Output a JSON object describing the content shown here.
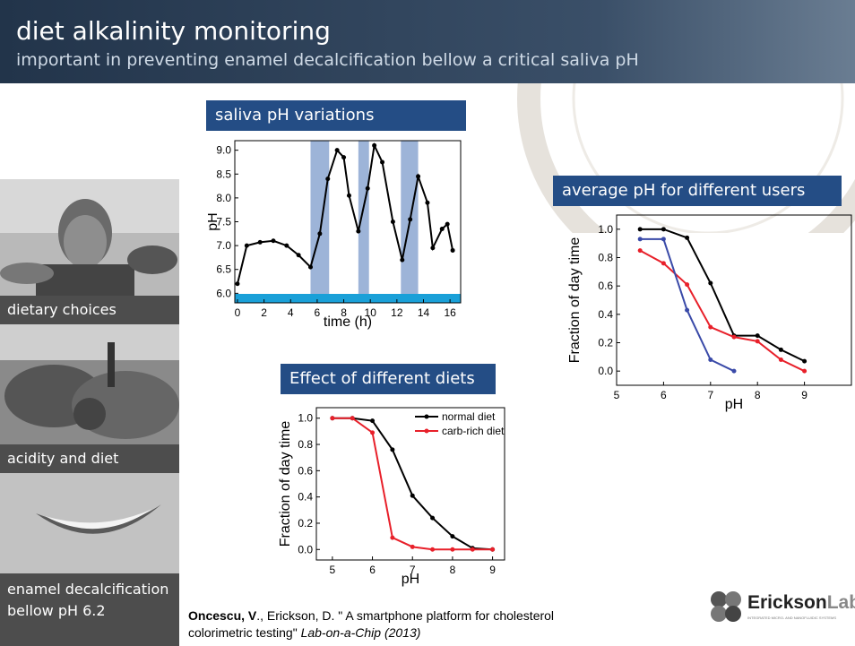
{
  "header": {
    "title": "diet alkalinity monitoring",
    "subtitle": "important in preventing enamel decalcification bellow a critical saliva pH"
  },
  "captions": [
    "dietary choices",
    "acidity and diet",
    "enamel decalcification bellow pH 6.2"
  ],
  "citation": {
    "author": "Oncescu, V",
    "text": "., Erickson, D. \" A smartphone platform for cholesterol colorimetric testing\" ",
    "journal": "Lab-on-a-Chip (2013)"
  },
  "logo": {
    "name": "Erickson",
    "suffix": "Lab",
    "tagline": "INTEGRATED MICRO- AND NANOFLUIDIC SYSTEMS"
  },
  "chart_data": [
    {
      "type": "line",
      "title": "saliva pH variations",
      "xlabel": "time (h)",
      "ylabel": "pH",
      "x": [
        0,
        0.7,
        1.7,
        2.7,
        3.7,
        4.6,
        5.5,
        6.2,
        6.8,
        7.5,
        8.0,
        8.4,
        9.1,
        9.8,
        10.3,
        10.9,
        11.7,
        12.4,
        13.0,
        13.6,
        14.3,
        14.7,
        15.4,
        15.8,
        16.2
      ],
      "series": [
        {
          "color": "#000000",
          "values": [
            6.2,
            7.0,
            7.07,
            7.1,
            7.0,
            6.8,
            6.55,
            7.25,
            8.4,
            9.0,
            8.85,
            8.05,
            7.3,
            8.2,
            9.1,
            8.75,
            7.5,
            6.7,
            7.55,
            8.45,
            7.9,
            6.95,
            7.35,
            7.45,
            6.9
          ]
        }
      ],
      "bands": [
        [
          5.5,
          6.9
        ],
        [
          9.1,
          9.9
        ],
        [
          12.3,
          13.6
        ]
      ],
      "band_color": "#9db4d8",
      "xlim": [
        -0.2,
        16.8
      ],
      "ylim": [
        5.8,
        9.2
      ],
      "xticks": [
        0,
        2,
        4,
        6,
        8,
        10,
        12,
        14,
        16
      ],
      "yticks": [
        {
          "value": 6.0,
          "label": "6.0"
        },
        {
          "value": 6.5,
          "label": "6.5"
        },
        {
          "value": 7.0,
          "label": "7.0"
        },
        {
          "value": 7.5,
          "label": "7.5"
        },
        {
          "value": 8.0,
          "label": "8.0"
        },
        {
          "value": 8.5,
          "label": "8.5"
        },
        {
          "value": 9.0,
          "label": "9.0"
        }
      ]
    },
    {
      "type": "line",
      "title": "average pH for different users",
      "xlabel": "pH",
      "ylabel": "Fraction of day time",
      "x": [
        5.5,
        6,
        6.5,
        7,
        7.5,
        8,
        8.5,
        9
      ],
      "series": [
        {
          "color": "#000000",
          "values": [
            1.0,
            1.0,
            0.94,
            0.62,
            0.25,
            0.25,
            0.15,
            0.07
          ]
        },
        {
          "color": "#e8202a",
          "values": [
            0.85,
            0.76,
            0.61,
            0.31,
            0.24,
            0.21,
            0.08,
            0.0
          ]
        },
        {
          "color": "#3a4aa8",
          "values": [
            0.93,
            0.93,
            0.43,
            0.08,
            0.0,
            null,
            null,
            null
          ]
        }
      ],
      "xlim": [
        5,
        10
      ],
      "ylim": [
        -0.1,
        1.1
      ],
      "xticks": [
        5,
        6,
        7,
        8,
        9
      ],
      "yticks": [
        {
          "value": 0.0,
          "label": "0.0"
        },
        {
          "value": 0.2,
          "label": "0.2"
        },
        {
          "value": 0.4,
          "label": "0.4"
        },
        {
          "value": 0.6,
          "label": "0.6"
        },
        {
          "value": 0.8,
          "label": "0.8"
        },
        {
          "value": 1.0,
          "label": "1.0"
        }
      ]
    },
    {
      "type": "line",
      "title": "Effect of different diets",
      "xlabel": "pH",
      "ylabel": "Fraction of day time",
      "x": [
        5,
        5.5,
        6,
        6.5,
        7,
        7.5,
        8,
        8.5,
        9
      ],
      "series": [
        {
          "name": "normal diet",
          "color": "#000000",
          "values": [
            1.0,
            1.0,
            0.98,
            0.76,
            0.41,
            0.24,
            0.1,
            0.01,
            0.0
          ]
        },
        {
          "name": "carb-rich diet",
          "color": "#e8202a",
          "values": [
            1.0,
            1.0,
            0.89,
            0.09,
            0.02,
            0.0,
            0.0,
            0.0,
            0.0
          ]
        }
      ],
      "legend": "upper right",
      "xlim": [
        4.6,
        9.3
      ],
      "ylim": [
        -0.08,
        1.08
      ],
      "xticks": [
        5,
        6,
        7,
        8,
        9
      ],
      "yticks": [
        {
          "value": 0.0,
          "label": "0.0"
        },
        {
          "value": 0.2,
          "label": "0.2"
        },
        {
          "value": 0.4,
          "label": "0.4"
        },
        {
          "value": 0.6,
          "label": "0.6"
        },
        {
          "value": 0.8,
          "label": "0.8"
        },
        {
          "value": 1.0,
          "label": "1.0"
        }
      ]
    }
  ]
}
